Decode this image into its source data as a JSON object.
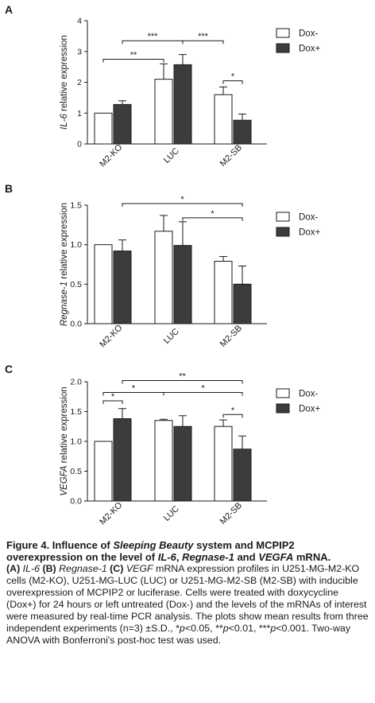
{
  "colors": {
    "dox_minus": "#ffffff",
    "dox_plus": "#3c3c3c",
    "stroke": "#1a1a1a"
  },
  "chart_data": [
    {
      "panel": "A",
      "type": "bar",
      "ylabel_italic": "IL-6",
      "ylabel_rest": " relative expression",
      "categories": [
        "M2-KO",
        "LUC",
        "M2-SB"
      ],
      "series": [
        {
          "name": "Dox-",
          "values": [
            1.0,
            2.1,
            1.6
          ],
          "errors": [
            0.0,
            0.5,
            0.25
          ]
        },
        {
          "name": "Dox+",
          "values": [
            1.28,
            2.57,
            0.77
          ],
          "errors": [
            0.12,
            0.33,
            0.2
          ]
        }
      ],
      "ylim": [
        0,
        4
      ],
      "yticks": [
        0,
        1,
        2,
        3,
        4
      ],
      "ytick_labels": [
        "0",
        "1",
        "2",
        "3",
        "4"
      ],
      "legend_position": "top-right",
      "significance": [
        {
          "from": [
            0,
            0
          ],
          "to": [
            1,
            0
          ],
          "y": 2.75,
          "label": "**"
        },
        {
          "from": [
            0,
            1
          ],
          "to": [
            1,
            1
          ],
          "y": 3.35,
          "label": "***"
        },
        {
          "from": [
            1,
            1
          ],
          "to": [
            2,
            0
          ],
          "y": 3.35,
          "label": "***"
        },
        {
          "from": [
            2,
            0
          ],
          "to": [
            2,
            1
          ],
          "y": 2.05,
          "label": "*"
        }
      ]
    },
    {
      "panel": "B",
      "type": "bar",
      "ylabel_italic": "Regnase-1",
      "ylabel_rest": " relative expression",
      "categories": [
        "M2-KO",
        "LUC",
        "M2-SB"
      ],
      "series": [
        {
          "name": "Dox-",
          "values": [
            1.0,
            1.17,
            0.79
          ],
          "errors": [
            0.0,
            0.2,
            0.06
          ]
        },
        {
          "name": "Dox+",
          "values": [
            0.92,
            0.99,
            0.5
          ],
          "errors": [
            0.14,
            0.3,
            0.23
          ]
        }
      ],
      "ylim": [
        0,
        1.5
      ],
      "yticks": [
        0,
        0.5,
        1,
        1.5
      ],
      "ytick_labels": [
        "0.0",
        "0.5",
        "1.0",
        "1.5"
      ],
      "legend_position": "top-right",
      "significance": [
        {
          "from": [
            0,
            1
          ],
          "to": [
            2,
            1
          ],
          "y": 1.52,
          "label": "*"
        },
        {
          "from": [
            1,
            1
          ],
          "to": [
            2,
            1
          ],
          "y": 1.34,
          "label": "*"
        }
      ]
    },
    {
      "panel": "C",
      "type": "bar",
      "ylabel_italic": "VEGFA",
      "ylabel_rest": " relative expression",
      "categories": [
        "M2-KO",
        "LUC",
        "M2-SB"
      ],
      "series": [
        {
          "name": "Dox-",
          "values": [
            1.0,
            1.35,
            1.25
          ],
          "errors": [
            0.0,
            0.02,
            0.11
          ]
        },
        {
          "name": "Dox+",
          "values": [
            1.38,
            1.25,
            0.87
          ],
          "errors": [
            0.17,
            0.18,
            0.22
          ]
        }
      ],
      "ylim": [
        0,
        2
      ],
      "yticks": [
        0,
        0.5,
        1,
        1.5,
        2
      ],
      "ytick_labels": [
        "0.0",
        "0.5",
        "1.0",
        "1.5",
        "2.0"
      ],
      "legend_position": "top-right",
      "significance": [
        {
          "from": [
            0,
            0
          ],
          "to": [
            0,
            1
          ],
          "y": 1.68,
          "label": "*"
        },
        {
          "from": [
            0,
            0
          ],
          "to": [
            1,
            0
          ],
          "y": 1.82,
          "label": "*"
        },
        {
          "from": [
            0,
            1
          ],
          "to": [
            2,
            1
          ],
          "y": 2.02,
          "label": "**"
        },
        {
          "from": [
            1,
            0
          ],
          "to": [
            2,
            1
          ],
          "y": 1.82,
          "label": "*"
        },
        {
          "from": [
            2,
            0
          ],
          "to": [
            2,
            1
          ],
          "y": 1.45,
          "label": "*"
        }
      ]
    }
  ],
  "caption": {
    "title_plain1": "Figure 4. Influence of ",
    "title_italic1": "Sleeping Beauty",
    "title_plain2": " system and MCPIP2 overexpression on the level of ",
    "title_italic2": "IL-6",
    "title_plain3": ", ",
    "title_italic3": "Regnase-1",
    "title_plain4": " and ",
    "title_italic4": "VEGFA",
    "title_plain5": " mRNA.",
    "b1": "(A) ",
    "i1": "IL-6",
    "b2": " (B) ",
    "i2": "Regnase-1",
    "b3": " (C) ",
    "i3": "VEGF",
    "body1": " mRNA expression profiles in U251-MG-M2-KO cells (M2-KO), U251-MG-LUC (LUC) or U251-MG-M2-SB (M2-SB) with inducible overexpression of MCPIP2 or luciferase. Cells were treated with doxycycline (Dox+) for 24 hours or left untreated (Dox-) and the levels of the mRNAs of interest were measured by real-time PCR analysis. The plots show mean results from three independent experiments (n=3) ±S.D., *",
    "p1": "p",
    "body2": "<0.05, **",
    "p2": "p",
    "body3": "<0.01, ***",
    "p3": "p",
    "body4": "<0.001. Two-way ANOVA with Bonferroni's post-hoc test was used."
  }
}
